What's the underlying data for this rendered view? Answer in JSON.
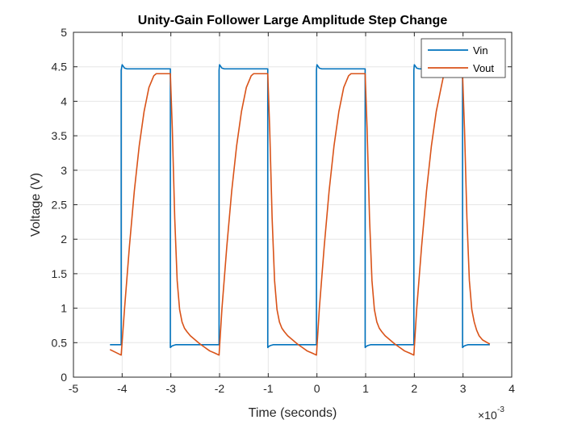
{
  "chart_data": {
    "type": "line",
    "title": "Unity-Gain Follower Large Amplitude Step Change",
    "xlabel": "Time (seconds)",
    "ylabel": "Voltage (V)",
    "x_exponent_base": "×10",
    "x_exponent_power": "-3",
    "xlim": [
      -5,
      4
    ],
    "ylim": [
      0,
      5
    ],
    "xticks": [
      -5,
      -4,
      -3,
      -2,
      -1,
      0,
      1,
      2,
      3,
      4
    ],
    "yticks": [
      0,
      0.5,
      1,
      1.5,
      2,
      2.5,
      3,
      3.5,
      4,
      4.5,
      5
    ],
    "xtick_labels": [
      "-5",
      "-4",
      "-3",
      "-2",
      "-1",
      "0",
      "1",
      "2",
      "3",
      "4"
    ],
    "ytick_labels": [
      "0",
      "0.5",
      "1",
      "1.5",
      "2",
      "2.5",
      "3",
      "3.5",
      "4",
      "4.5",
      "5"
    ],
    "grid": true,
    "legend_location": "top-right",
    "series": [
      {
        "name": "Vin",
        "color": "#0072BD",
        "x": [
          -4.25,
          -4.02,
          -4.02,
          -4.0,
          -3.98,
          -3.95,
          -3.9,
          -3.5,
          -3.01,
          -3.01,
          -2.98,
          -2.95,
          -2.9,
          -2.5,
          -2.01,
          -2.01,
          -2.0,
          -1.98,
          -1.95,
          -1.9,
          -1.5,
          -1.01,
          -1.01,
          -0.98,
          -0.95,
          -0.9,
          -0.5,
          -0.01,
          -0.01,
          0.0,
          0.02,
          0.05,
          0.1,
          0.5,
          0.99,
          0.99,
          1.02,
          1.05,
          1.1,
          1.5,
          1.99,
          1.99,
          2.0,
          2.02,
          2.05,
          2.1,
          2.5,
          2.99,
          2.99,
          3.02,
          3.05,
          3.1,
          3.55
        ],
        "y": [
          0.47,
          0.47,
          4.45,
          4.53,
          4.51,
          4.48,
          4.47,
          4.47,
          4.47,
          0.43,
          0.45,
          0.46,
          0.47,
          0.47,
          0.47,
          4.45,
          4.53,
          4.51,
          4.48,
          4.47,
          4.47,
          4.47,
          0.43,
          0.45,
          0.46,
          0.47,
          0.47,
          0.47,
          4.45,
          4.53,
          4.51,
          4.48,
          4.47,
          4.47,
          4.47,
          0.43,
          0.45,
          0.46,
          0.47,
          0.47,
          0.47,
          4.45,
          4.53,
          4.51,
          4.48,
          4.47,
          4.47,
          4.47,
          0.43,
          0.45,
          0.46,
          0.47,
          0.47
        ]
      },
      {
        "name": "Vout",
        "color": "#D95319",
        "x": [
          -4.25,
          -4.02,
          -3.95,
          -3.85,
          -3.75,
          -3.65,
          -3.55,
          -3.45,
          -3.35,
          -3.3,
          -3.25,
          -3.15,
          -3.01,
          -2.97,
          -2.92,
          -2.87,
          -2.82,
          -2.77,
          -2.72,
          -2.67,
          -2.6,
          -2.5,
          -2.4,
          -2.3,
          -2.2,
          -2.1,
          -2.01,
          -1.95,
          -1.85,
          -1.75,
          -1.65,
          -1.55,
          -1.45,
          -1.35,
          -1.3,
          -1.25,
          -1.15,
          -1.01,
          -0.97,
          -0.92,
          -0.87,
          -0.82,
          -0.77,
          -0.72,
          -0.67,
          -0.6,
          -0.5,
          -0.4,
          -0.3,
          -0.2,
          -0.1,
          -0.01,
          0.05,
          0.15,
          0.25,
          0.35,
          0.45,
          0.55,
          0.65,
          0.7,
          0.75,
          0.85,
          0.99,
          1.03,
          1.08,
          1.13,
          1.18,
          1.23,
          1.28,
          1.33,
          1.4,
          1.5,
          1.6,
          1.7,
          1.8,
          1.9,
          1.99,
          2.05,
          2.15,
          2.25,
          2.35,
          2.45,
          2.55,
          2.6,
          2.65,
          2.75,
          2.99,
          3.03,
          3.08,
          3.13,
          3.18,
          3.23,
          3.28,
          3.33,
          3.4,
          3.5,
          3.55
        ],
        "y": [
          0.4,
          0.32,
          1.0,
          1.9,
          2.7,
          3.35,
          3.85,
          4.2,
          4.37,
          4.4,
          4.4,
          4.4,
          4.4,
          3.6,
          2.3,
          1.4,
          0.98,
          0.8,
          0.71,
          0.66,
          0.6,
          0.54,
          0.48,
          0.43,
          0.38,
          0.35,
          0.32,
          1.0,
          1.9,
          2.7,
          3.35,
          3.85,
          4.2,
          4.37,
          4.4,
          4.4,
          4.4,
          4.4,
          3.6,
          2.3,
          1.4,
          0.98,
          0.8,
          0.71,
          0.66,
          0.6,
          0.54,
          0.48,
          0.43,
          0.38,
          0.35,
          0.32,
          1.0,
          1.9,
          2.7,
          3.35,
          3.85,
          4.2,
          4.37,
          4.4,
          4.4,
          4.4,
          4.4,
          3.6,
          2.3,
          1.4,
          0.98,
          0.8,
          0.71,
          0.66,
          0.6,
          0.54,
          0.48,
          0.43,
          0.38,
          0.35,
          0.32,
          1.0,
          1.9,
          2.7,
          3.35,
          3.85,
          4.2,
          4.37,
          4.4,
          4.4,
          4.4,
          3.6,
          2.3,
          1.4,
          0.98,
          0.8,
          0.68,
          0.6,
          0.54,
          0.5,
          0.48
        ]
      }
    ]
  }
}
